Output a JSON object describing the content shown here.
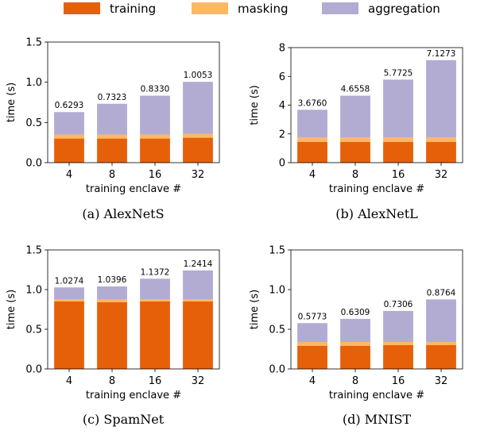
{
  "legend": {
    "items": [
      {
        "label": "training",
        "color": "#e6600a"
      },
      {
        "label": "masking",
        "color": "#fdb863"
      },
      {
        "label": "aggregation",
        "color": "#b2abd2"
      }
    ],
    "placement": "top-center"
  },
  "chart_data": [
    {
      "type": "bar",
      "stacked": true,
      "caption": "(a) AlexNetS",
      "xlabel": "training enclave #",
      "ylabel": "time (s)",
      "categories": [
        "4",
        "8",
        "16",
        "32"
      ],
      "ylim": [
        0,
        1.5
      ],
      "yticks": [
        "0.0",
        "0.5",
        "1.0",
        "1.5"
      ],
      "series": [
        {
          "name": "training",
          "values": [
            0.3,
            0.3,
            0.3,
            0.31
          ]
        },
        {
          "name": "masking",
          "values": [
            0.05,
            0.05,
            0.05,
            0.05
          ]
        },
        {
          "name": "aggregation",
          "values": [
            0.2793,
            0.3823,
            0.483,
            0.6453
          ]
        }
      ],
      "totals": [
        0.6293,
        0.7323,
        0.833,
        1.0053
      ],
      "total_labels": [
        "0.6293",
        "0.7323",
        "0.8330",
        "1.0053"
      ]
    },
    {
      "type": "bar",
      "stacked": true,
      "caption": "(b) AlexNetL",
      "xlabel": "training enclave #",
      "ylabel": "time (s)",
      "categories": [
        "4",
        "8",
        "16",
        "32"
      ],
      "ylim": [
        0,
        8
      ],
      "yticks": [
        "0",
        "2",
        "4",
        "6",
        "8"
      ],
      "series": [
        {
          "name": "training",
          "values": [
            1.45,
            1.45,
            1.45,
            1.45
          ]
        },
        {
          "name": "masking",
          "values": [
            0.3,
            0.3,
            0.3,
            0.3
          ]
        },
        {
          "name": "aggregation",
          "values": [
            1.926,
            2.9058,
            4.0225,
            5.3773
          ]
        }
      ],
      "totals": [
        3.676,
        4.6558,
        5.7725,
        7.1273
      ],
      "total_labels": [
        "3.6760",
        "4.6558",
        "5.7725",
        "7.1273"
      ]
    },
    {
      "type": "bar",
      "stacked": true,
      "caption": "(c) SpamNet",
      "xlabel": "training enclave #",
      "ylabel": "time (s)",
      "categories": [
        "4",
        "8",
        "16",
        "32"
      ],
      "ylim": [
        0,
        1.5
      ],
      "yticks": [
        "0.0",
        "0.5",
        "1.0",
        "1.5"
      ],
      "series": [
        {
          "name": "training",
          "values": [
            0.85,
            0.84,
            0.85,
            0.85
          ]
        },
        {
          "name": "masking",
          "values": [
            0.03,
            0.04,
            0.03,
            0.03
          ]
        },
        {
          "name": "aggregation",
          "values": [
            0.1474,
            0.1596,
            0.2572,
            0.3614
          ]
        }
      ],
      "totals": [
        1.0274,
        1.0396,
        1.1372,
        1.2414
      ],
      "total_labels": [
        "1.0274",
        "1.0396",
        "1.1372",
        "1.2414"
      ]
    },
    {
      "type": "bar",
      "stacked": true,
      "caption": "(d) MNIST",
      "xlabel": "training enclave #",
      "ylabel": "time (s)",
      "categories": [
        "4",
        "8",
        "16",
        "32"
      ],
      "ylim": [
        0,
        1.5
      ],
      "yticks": [
        "0.0",
        "0.5",
        "1.0",
        "1.5"
      ],
      "series": [
        {
          "name": "training",
          "values": [
            0.29,
            0.29,
            0.3,
            0.3
          ]
        },
        {
          "name": "masking",
          "values": [
            0.05,
            0.05,
            0.04,
            0.04
          ]
        },
        {
          "name": "aggregation",
          "values": [
            0.2373,
            0.2909,
            0.3906,
            0.5364
          ]
        }
      ],
      "totals": [
        0.5773,
        0.6309,
        0.7306,
        0.8764
      ],
      "total_labels": [
        "0.5773",
        "0.6309",
        "0.7306",
        "0.8764"
      ]
    }
  ]
}
